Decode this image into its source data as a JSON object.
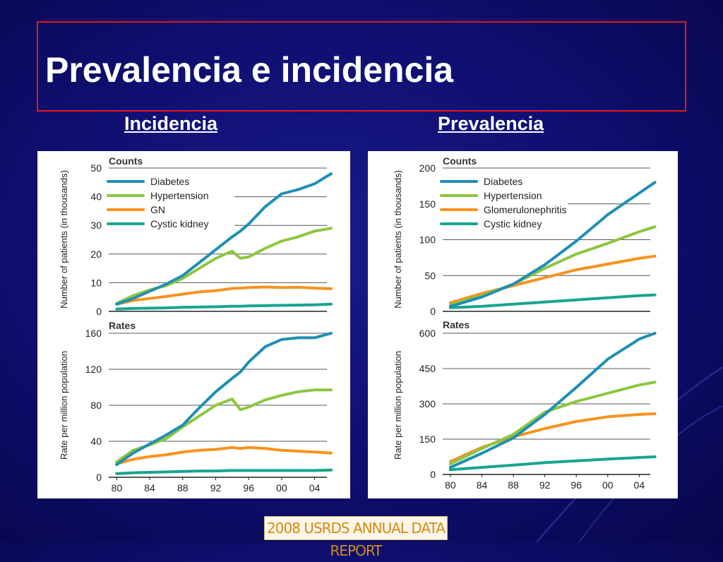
{
  "slide": {
    "title": "Prevalencia e incidencia",
    "left_heading": "Incidencia",
    "right_heading": "Prevalencia",
    "footer": "2008 USRDS ANNUAL DATA REPORT"
  },
  "colors": {
    "background": "#0e0e6e",
    "title_border": "#e01818",
    "diabetes": "#1f8fb3",
    "hypertension": "#8cc63f",
    "gn": "#f7931e",
    "cystic": "#17a58f"
  },
  "chart_data": [
    {
      "type": "line",
      "panel": "incidence",
      "title": "Counts",
      "ylabel": "Number of patients (in thousands)",
      "ylim": [
        0,
        50
      ],
      "yticks": [
        "0",
        "10",
        "20",
        "30",
        "40",
        "50"
      ],
      "grid": true,
      "legend": "top-left",
      "x": [
        1980,
        1982,
        1984,
        1986,
        1988,
        1990,
        1992,
        1994,
        1995,
        1996,
        1998,
        2000,
        2002,
        2004,
        2006
      ],
      "series": [
        {
          "name": "Diabetes",
          "color": "#1f8fb3",
          "values": [
            2.5,
            4.5,
            7,
            9.5,
            12.5,
            17,
            21.5,
            26,
            28,
            30.5,
            36.5,
            41,
            42.5,
            44.5,
            48
          ]
        },
        {
          "name": "Hypertension",
          "color": "#8cc63f",
          "values": [
            2.8,
            5.5,
            7.5,
            9,
            11.5,
            15,
            18.5,
            21,
            18.5,
            19,
            22,
            24.5,
            26,
            28,
            29
          ]
        },
        {
          "name": "GN",
          "color": "#f7931e",
          "values": [
            2.5,
            3.8,
            4.5,
            5.2,
            6,
            6.8,
            7.2,
            8,
            8.1,
            8.3,
            8.5,
            8.3,
            8.4,
            8.1,
            7.9
          ]
        },
        {
          "name": "Cystic kidney",
          "color": "#17a58f",
          "values": [
            0.8,
            1,
            1.1,
            1.2,
            1.4,
            1.5,
            1.6,
            1.8,
            1.8,
            1.9,
            2,
            2.1,
            2.2,
            2.3,
            2.5
          ]
        }
      ]
    },
    {
      "type": "line",
      "panel": "incidence",
      "title": "Rates",
      "ylabel": "Rate per million population",
      "ylim": [
        0,
        160
      ],
      "yticks": [
        "0",
        "40",
        "80",
        "120",
        "160"
      ],
      "xticks": [
        "80",
        "84",
        "88",
        "92",
        "96",
        "00",
        "04"
      ],
      "grid": true,
      "x": [
        1980,
        1982,
        1984,
        1986,
        1988,
        1990,
        1992,
        1994,
        1995,
        1996,
        1998,
        2000,
        2002,
        2004,
        2006
      ],
      "series": [
        {
          "name": "Diabetes",
          "color": "#1f8fb3",
          "values": [
            14,
            27,
            37,
            47,
            58,
            77,
            95,
            110,
            117,
            128,
            145,
            153,
            155,
            155,
            160
          ]
        },
        {
          "name": "Hypertension",
          "color": "#8cc63f",
          "values": [
            17,
            30,
            36,
            43,
            56,
            68,
            80,
            87,
            75,
            78,
            86,
            91,
            95,
            97,
            97
          ]
        },
        {
          "name": "GN",
          "color": "#f7931e",
          "values": [
            15,
            20,
            23,
            25,
            28,
            30,
            31,
            33,
            32,
            33,
            32,
            30,
            29,
            28,
            27
          ]
        },
        {
          "name": "Cystic kidney",
          "color": "#17a58f",
          "values": [
            4,
            5,
            5.5,
            6,
            6.5,
            7,
            7,
            7.5,
            7.5,
            7.5,
            7.5,
            7.5,
            7.5,
            7.5,
            8
          ]
        }
      ]
    },
    {
      "type": "line",
      "panel": "prevalence",
      "title": "Counts",
      "ylabel": "Number of patients (in thousands)",
      "ylim": [
        0,
        200
      ],
      "yticks": [
        "0",
        "50",
        "100",
        "150",
        "200"
      ],
      "grid": true,
      "legend": "top-left",
      "x": [
        1980,
        1984,
        1988,
        1992,
        1996,
        2000,
        2004,
        2006
      ],
      "series": [
        {
          "name": "Diabetes",
          "color": "#1f8fb3",
          "values": [
            7,
            20,
            38,
            65,
            98,
            135,
            165,
            180
          ]
        },
        {
          "name": "Hypertension",
          "color": "#8cc63f",
          "values": [
            9,
            22,
            38,
            60,
            80,
            95,
            111,
            118
          ]
        },
        {
          "name": "Glomerulonephritis",
          "color": "#f7931e",
          "values": [
            12,
            25,
            36,
            47,
            58,
            66,
            74,
            77
          ]
        },
        {
          "name": "Cystic kidney",
          "color": "#17a58f",
          "values": [
            5,
            7,
            10,
            13,
            16,
            19,
            22,
            23
          ]
        }
      ]
    },
    {
      "type": "line",
      "panel": "prevalence",
      "title": "Rates",
      "ylabel": "Rate per million population",
      "ylim": [
        0,
        600
      ],
      "yticks": [
        "0",
        "150",
        "300",
        "450",
        "600"
      ],
      "xticks": [
        "80",
        "84",
        "88",
        "92",
        "96",
        "00",
        "04"
      ],
      "grid": true,
      "x": [
        1980,
        1984,
        1988,
        1992,
        1996,
        2000,
        2004,
        2006
      ],
      "series": [
        {
          "name": "Diabetes",
          "color": "#1f8fb3",
          "values": [
            30,
            90,
            155,
            255,
            370,
            490,
            575,
            600
          ]
        },
        {
          "name": "Hypertension",
          "color": "#8cc63f",
          "values": [
            45,
            110,
            170,
            265,
            310,
            345,
            380,
            392
          ]
        },
        {
          "name": "Glomerulonephritis",
          "color": "#f7931e",
          "values": [
            55,
            115,
            160,
            195,
            225,
            245,
            255,
            258
          ]
        },
        {
          "name": "Cystic kidney",
          "color": "#17a58f",
          "values": [
            20,
            30,
            40,
            50,
            58,
            65,
            72,
            75
          ]
        }
      ]
    }
  ]
}
